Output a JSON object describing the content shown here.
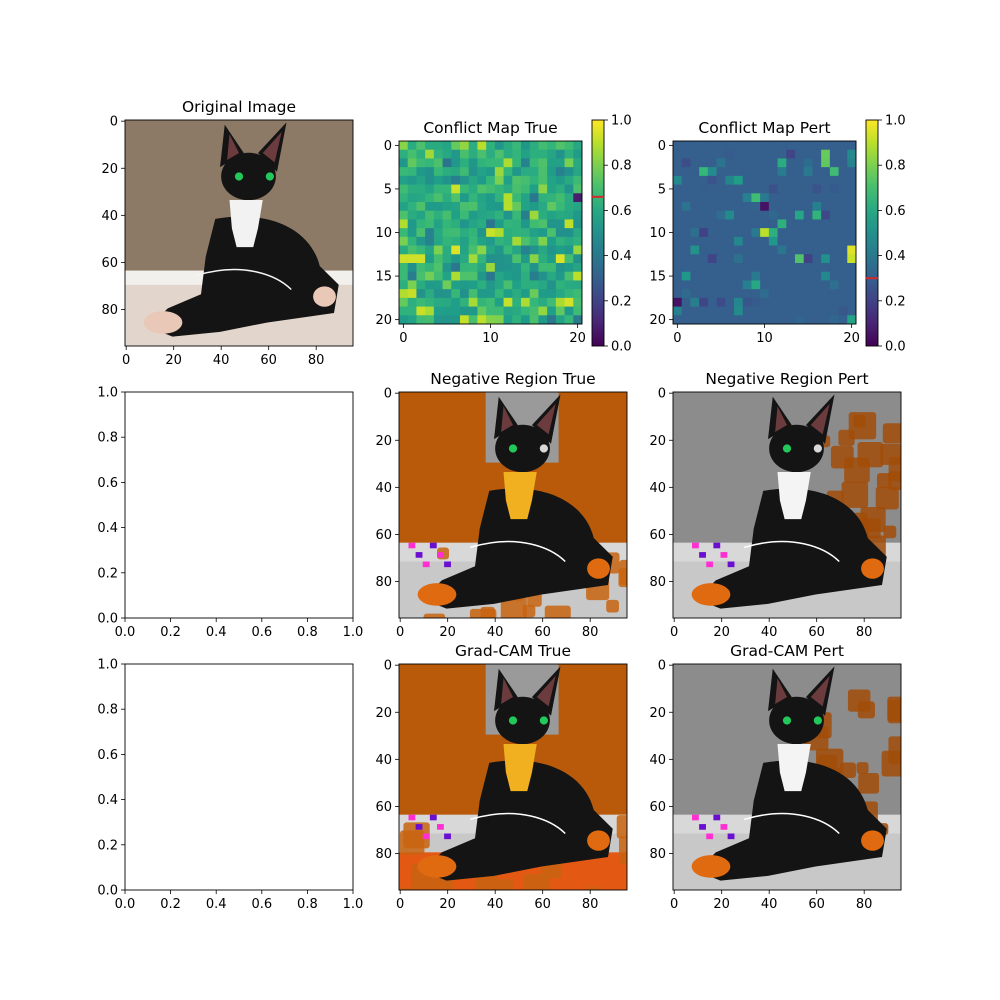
{
  "figure": {
    "panels": [
      {
        "id": "orig",
        "title": "Original Image",
        "kind": "image",
        "scene": "orig",
        "xticks": [
          0,
          20,
          40,
          60,
          80
        ],
        "yticks": [
          0,
          20,
          40,
          60,
          80
        ],
        "range": [
          0,
          96
        ]
      },
      {
        "id": "cm_true",
        "title": "Conflict Map True",
        "kind": "heatmap",
        "field": "true",
        "xticks": [
          0,
          10,
          20
        ],
        "yticks": [
          0,
          5,
          10,
          15,
          20
        ],
        "range": [
          0,
          21
        ]
      },
      {
        "id": "cm_pert",
        "title": "Conflict Map Pert",
        "kind": "heatmap",
        "field": "pert",
        "xticks": [
          0,
          10,
          20
        ],
        "yticks": [
          0,
          5,
          10,
          15,
          20
        ],
        "range": [
          0,
          21
        ]
      },
      {
        "id": "empty1",
        "title": "",
        "kind": "empty",
        "xticks": [
          "0.0",
          "0.2",
          "0.4",
          "0.6",
          "0.8",
          "1.0"
        ],
        "yticks": [
          "0.0",
          "0.2",
          "0.4",
          "0.6",
          "0.8",
          "1.0"
        ]
      },
      {
        "id": "neg_true",
        "title": "Negative Region True",
        "kind": "image",
        "scene": "negTrue",
        "xticks": [
          0,
          20,
          40,
          60,
          80
        ],
        "yticks": [
          0,
          20,
          40,
          60,
          80
        ],
        "range": [
          0,
          96
        ]
      },
      {
        "id": "neg_pert",
        "title": "Negative Region Pert",
        "kind": "image",
        "scene": "negPert",
        "xticks": [
          0,
          20,
          40,
          60,
          80
        ],
        "yticks": [
          0,
          20,
          40,
          60,
          80
        ],
        "range": [
          0,
          96
        ]
      },
      {
        "id": "empty2",
        "title": "",
        "kind": "empty",
        "xticks": [
          "0.0",
          "0.2",
          "0.4",
          "0.6",
          "0.8",
          "1.0"
        ],
        "yticks": [
          "0.0",
          "0.2",
          "0.4",
          "0.6",
          "0.8",
          "1.0"
        ]
      },
      {
        "id": "gc_true",
        "title": "Grad-CAM True",
        "kind": "image",
        "scene": "gcTrue",
        "xticks": [
          0,
          20,
          40,
          60,
          80
        ],
        "yticks": [
          0,
          20,
          40,
          60,
          80
        ],
        "range": [
          0,
          96
        ]
      },
      {
        "id": "gc_pert",
        "title": "Grad-CAM Pert",
        "kind": "image",
        "scene": "gcPert",
        "xticks": [
          0,
          20,
          40,
          60,
          80
        ],
        "yticks": [
          0,
          20,
          40,
          60,
          80
        ],
        "range": [
          0,
          96
        ]
      }
    ],
    "colorbars": [
      {
        "id": "cb_true",
        "ticks": [
          "0.0",
          "0.2",
          "0.4",
          "0.6",
          "0.8",
          "1.0"
        ],
        "marker": 0.66,
        "marker_color": "#d62728"
      },
      {
        "id": "cb_pert",
        "ticks": [
          "0.0",
          "0.2",
          "0.4",
          "0.6",
          "0.8",
          "1.0"
        ],
        "marker": 0.3,
        "marker_color": "#d62728"
      }
    ]
  },
  "chart_data": [
    {
      "type": "image",
      "title": "Original Image",
      "xlim": [
        0,
        96
      ],
      "ylim": [
        96,
        0
      ]
    },
    {
      "type": "heatmap",
      "title": "Conflict Map True",
      "grid": [
        21,
        21
      ],
      "colormap": "viridis",
      "vlim": [
        0,
        1
      ],
      "dominant_value": 0.55,
      "value_range_observed": [
        0.4,
        0.95
      ]
    },
    {
      "type": "heatmap",
      "title": "Conflict Map Pert",
      "grid": [
        21,
        21
      ],
      "colormap": "viridis",
      "vlim": [
        0,
        1
      ],
      "dominant_value": 0.3,
      "value_range_observed": [
        0.05,
        0.95
      ]
    },
    {
      "type": "empty",
      "xlim": [
        0,
        1
      ],
      "ylim": [
        0,
        1
      ]
    },
    {
      "type": "image",
      "title": "Negative Region True",
      "xlim": [
        0,
        96
      ],
      "ylim": [
        96,
        0
      ]
    },
    {
      "type": "image",
      "title": "Negative Region Pert",
      "xlim": [
        0,
        96
      ],
      "ylim": [
        96,
        0
      ]
    },
    {
      "type": "empty",
      "xlim": [
        0,
        1
      ],
      "ylim": [
        0,
        1
      ]
    },
    {
      "type": "image",
      "title": "Grad-CAM True",
      "xlim": [
        0,
        96
      ],
      "ylim": [
        96,
        0
      ]
    },
    {
      "type": "image",
      "title": "Grad-CAM Pert",
      "xlim": [
        0,
        96
      ],
      "ylim": [
        96,
        0
      ]
    }
  ],
  "colors": {
    "orig_wall": "#8d7a66",
    "floor": "#e2d5cb",
    "cat": "#141414",
    "chest": "#f2f2f2",
    "eye": "#22c95a",
    "overlay_orange": "#b85a0a",
    "overlay_gray": "#8c8c8c",
    "hot": "#e64c00",
    "blob": "#6a0fd0"
  }
}
